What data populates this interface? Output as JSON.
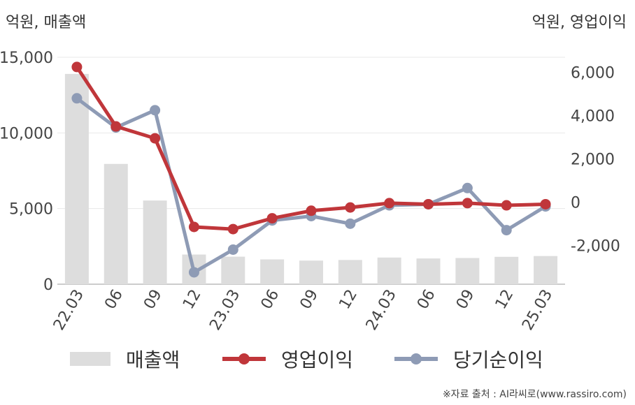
{
  "chart_data": {
    "type": "bar",
    "categories": [
      "22.03",
      "06",
      "09",
      "12",
      "23.03",
      "06",
      "09",
      "12",
      "24.03",
      "06",
      "09",
      "12",
      "25.03"
    ],
    "series": [
      {
        "name": "매출액",
        "type": "bar",
        "axis": "left",
        "color": "#dddddd",
        "values": [
          13900,
          7950,
          5530,
          1960,
          1820,
          1640,
          1560,
          1600,
          1760,
          1700,
          1730,
          1810,
          1860
        ]
      },
      {
        "name": "영업이익",
        "type": "line",
        "axis": "right",
        "color": "#c0363a",
        "values": [
          6250,
          3500,
          2950,
          -1150,
          -1250,
          -750,
          -400,
          -250,
          -50,
          -100,
          -50,
          -150,
          -100
        ]
      },
      {
        "name": "당기순이익",
        "type": "line",
        "axis": "right",
        "color": "#8e9bb5",
        "values": [
          4800,
          3450,
          4250,
          -3250,
          -2200,
          -850,
          -650,
          -1000,
          -150,
          -100,
          650,
          -1300,
          -200
        ]
      }
    ],
    "left_axis": {
      "unit_label": "억원, 매출액",
      "ylim": [
        0,
        15000
      ],
      "ticks": [
        0,
        5000,
        10000,
        15000
      ],
      "tick_labels": [
        "0",
        "5,000",
        "10,000",
        "15,000"
      ]
    },
    "right_axis": {
      "unit_label": "억원, 영업이익",
      "ylim": [
        -3800,
        6700
      ],
      "ticks": [
        -2000,
        0,
        2000,
        4000,
        6000
      ],
      "tick_labels": [
        "-2,000",
        "0",
        "2,000",
        "4,000",
        "6,000"
      ]
    },
    "grid": true,
    "legend_position": "bottom"
  },
  "source_note": "※자료 출처 : AI라씨로(www.rassiro.com)"
}
